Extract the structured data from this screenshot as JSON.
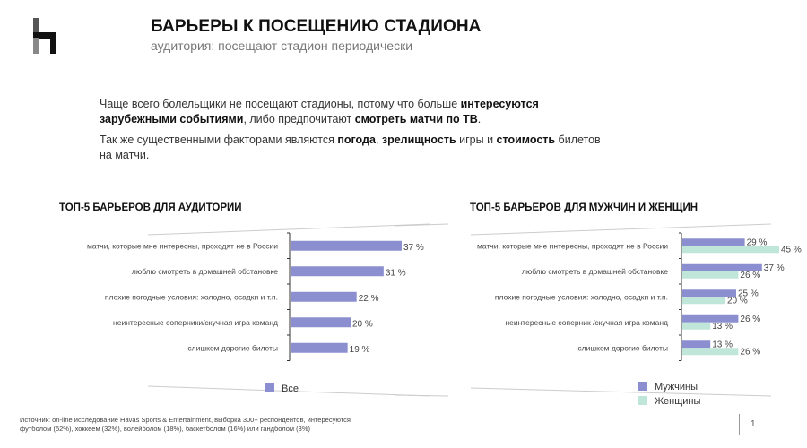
{
  "header": {
    "title": "БАРЬЕРЫ К ПОСЕЩЕНИЮ СТАДИОНА",
    "subtitle": "аудитория: посещают стадион периодически"
  },
  "paragraphs": [
    [
      {
        "text": "Чаще всего болельщики не посещают стадионы, потому что больше ",
        "bold": false
      },
      {
        "text": "интересуются зарубежными событиями",
        "bold": true
      },
      {
        "text": ", либо предпочитают ",
        "bold": false
      },
      {
        "text": "смотреть матчи по ТВ",
        "bold": true
      },
      {
        "text": ".",
        "bold": false
      }
    ],
    [
      {
        "text": "Так же существенными факторами являются ",
        "bold": false
      },
      {
        "text": "погода",
        "bold": true
      },
      {
        "text": ", ",
        "bold": false
      },
      {
        "text": "зрелищность",
        "bold": true
      },
      {
        "text": " игры и ",
        "bold": false
      },
      {
        "text": "стоимость",
        "bold": true
      },
      {
        "text": " билетов на матчи.",
        "bold": false
      }
    ]
  ],
  "chart_data": [
    {
      "type": "bar",
      "orientation": "horizontal",
      "title": "ТОП-5 БАРЬЕРОВ ДЛЯ АУДИТОРИИ",
      "categories": [
        "матчи, которые мне интересны, проходят не в России",
        "люблю смотреть в домашней обстановке",
        "плохие погодные условия: холодно, осадки и т.п.",
        "неинтересные соперники/скучная игра команд",
        "слишком дорогие билеты"
      ],
      "series": [
        {
          "name": "Все",
          "color": "#8b8fcf",
          "values": [
            37,
            31,
            22,
            20,
            19
          ]
        }
      ],
      "value_suffix": " %",
      "legend": "bottom"
    },
    {
      "type": "bar",
      "orientation": "horizontal",
      "title": "ТОП-5 БАРЬЕРОВ ДЛЯ МУЖЧИН И ЖЕНЩИН",
      "categories": [
        "матчи, которые мне интересны, проходят не в России",
        "люблю смотреть в домашней обстановке",
        "плохие погодные условия: холодно, осадки и т.п.",
        "неинтересные соперник /скучная игра команд",
        "слишком дорогие билеты"
      ],
      "series": [
        {
          "name": "Мужчины",
          "color": "#8b8fcf",
          "values": [
            29,
            37,
            25,
            26,
            13
          ]
        },
        {
          "name": "Женщины",
          "color": "#bfe6d8",
          "values": [
            45,
            26,
            20,
            13,
            26
          ]
        }
      ],
      "value_suffix": " %",
      "legend": "bottom"
    }
  ],
  "footer": {
    "source": "Источник: on-line исследование Havas Sports & Entertainment, выборка 300+ респондентов, интересуются футболом (52%), хоккеем (32%), волейболом (18%), баскетболом (16%) или гандболом (3%)",
    "page_number": "1"
  }
}
